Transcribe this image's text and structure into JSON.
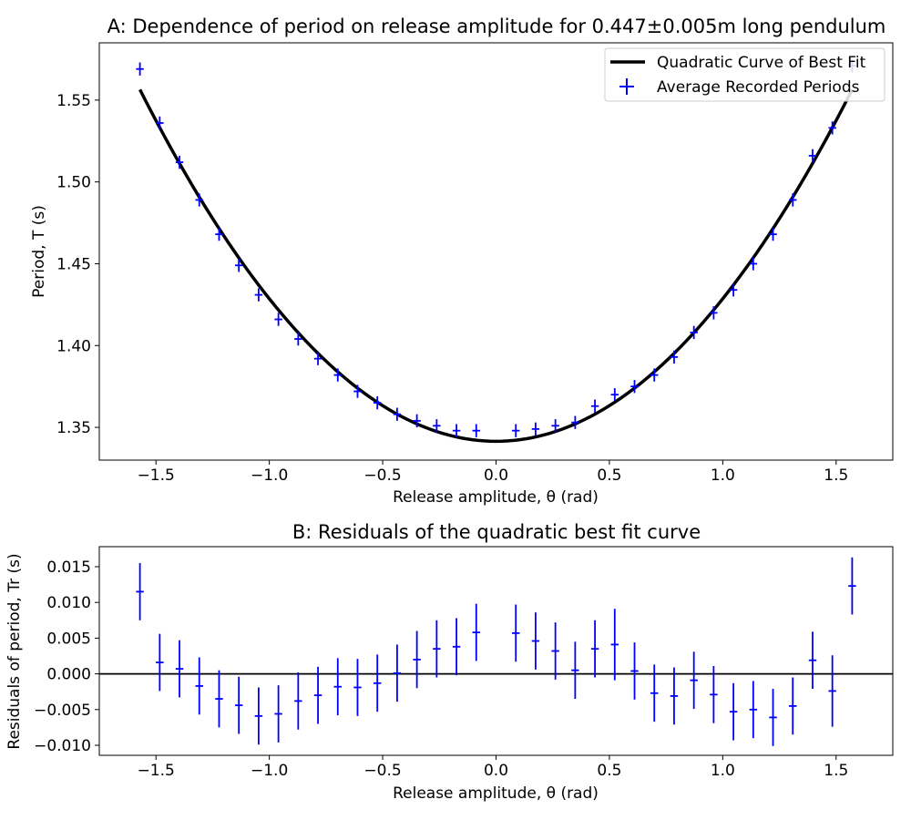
{
  "chart_data": [
    {
      "type": "scatter",
      "title": "A: Dependence of period on release amplitude for 0.447±0.005m long pendulum",
      "xlabel": "Release amplitude, θ (rad)",
      "ylabel": "Period, T (s)",
      "xlim": [
        -1.75,
        1.75
      ],
      "ylim": [
        1.33,
        1.585
      ],
      "xticks": [
        -1.5,
        -1.0,
        -0.5,
        0.0,
        0.5,
        1.0,
        1.5
      ],
      "yticks": [
        1.35,
        1.4,
        1.45,
        1.5,
        1.55
      ],
      "legend_position": "top-right",
      "legend": [
        "Quadratic Curve of Best Fit",
        "Average Recorded Periods"
      ],
      "fit": {
        "a": 0.0871,
        "b": 0.0,
        "c": 1.3415,
        "x_range": [
          -1.5708,
          1.5708
        ],
        "color": "#000000"
      },
      "series": [
        {
          "name": "Average Recorded Periods",
          "color": "#0000ff",
          "x": [
            -1.5708,
            -1.4835,
            -1.3963,
            -1.309,
            -1.2217,
            -1.1345,
            -1.0472,
            -0.9599,
            -0.8727,
            -0.7854,
            -0.6981,
            -0.6109,
            -0.5236,
            -0.4363,
            -0.3491,
            -0.2618,
            -0.1745,
            -0.0873,
            0.0873,
            0.1745,
            0.2618,
            0.3491,
            0.4363,
            0.5236,
            0.6109,
            0.6981,
            0.7854,
            0.8727,
            0.9599,
            1.0472,
            1.1345,
            1.2217,
            1.309,
            1.3963,
            1.4835,
            1.5708
          ],
          "y": [
            1.569,
            1.536,
            1.512,
            1.489,
            1.468,
            1.449,
            1.431,
            1.416,
            1.404,
            1.392,
            1.382,
            1.372,
            1.365,
            1.358,
            1.354,
            1.351,
            1.348,
            1.348,
            1.348,
            1.349,
            1.351,
            1.353,
            1.363,
            1.37,
            1.375,
            1.382,
            1.393,
            1.408,
            1.42,
            1.434,
            1.45,
            1.468,
            1.489,
            1.516,
            1.533,
            1.571
          ],
          "yerr": 0.004,
          "xerr": 0.017
        }
      ]
    },
    {
      "type": "scatter",
      "title": "B: Residuals of the quadratic best fit curve",
      "xlabel": "Release amplitude, θ (rad)",
      "ylabel": "Residuals of period, Tr (s)",
      "xlim": [
        -1.75,
        1.75
      ],
      "ylim": [
        -0.0114,
        0.0178
      ],
      "xticks": [
        -1.5,
        -1.0,
        -0.5,
        0.0,
        0.5,
        1.0,
        1.5
      ],
      "yticks": [
        -0.01,
        -0.005,
        0.0,
        0.005,
        0.01,
        0.015
      ],
      "zero_line": true,
      "series": [
        {
          "color": "#0000ff",
          "x": [
            -1.5708,
            -1.4835,
            -1.3963,
            -1.309,
            -1.2217,
            -1.1345,
            -1.0472,
            -0.9599,
            -0.8727,
            -0.7854,
            -0.6981,
            -0.6109,
            -0.5236,
            -0.4363,
            -0.3491,
            -0.2618,
            -0.1745,
            -0.0873,
            0.0873,
            0.1745,
            0.2618,
            0.3491,
            0.4363,
            0.5236,
            0.6109,
            0.6981,
            0.7854,
            0.8727,
            0.9599,
            1.0472,
            1.1345,
            1.2217,
            1.309,
            1.3963,
            1.4835,
            1.5708
          ],
          "y": [
            0.0115,
            0.0016,
            0.0007,
            -0.0017,
            -0.0035,
            -0.0044,
            -0.0059,
            -0.0056,
            -0.0038,
            -0.003,
            -0.0018,
            -0.0019,
            -0.0013,
            0.0001,
            0.002,
            0.0035,
            0.0038,
            0.0058,
            0.0057,
            0.0046,
            0.0032,
            0.0005,
            0.0035,
            0.0041,
            0.0004,
            -0.0027,
            -0.0031,
            -0.0009,
            -0.0029,
            -0.0053,
            -0.005,
            -0.0061,
            -0.0045,
            0.0019,
            -0.0024,
            0.0123
          ],
          "yerr": [
            0.004,
            0.004,
            0.004,
            0.004,
            0.004,
            0.004,
            0.004,
            0.004,
            0.004,
            0.004,
            0.004,
            0.004,
            0.004,
            0.004,
            0.004,
            0.004,
            0.004,
            0.004,
            0.004,
            0.004,
            0.004,
            0.004,
            0.004,
            0.005,
            0.004,
            0.004,
            0.004,
            0.004,
            0.004,
            0.004,
            0.004,
            0.004,
            0.004,
            0.004,
            0.005,
            0.004
          ],
          "xerr": 0.017
        }
      ]
    }
  ]
}
